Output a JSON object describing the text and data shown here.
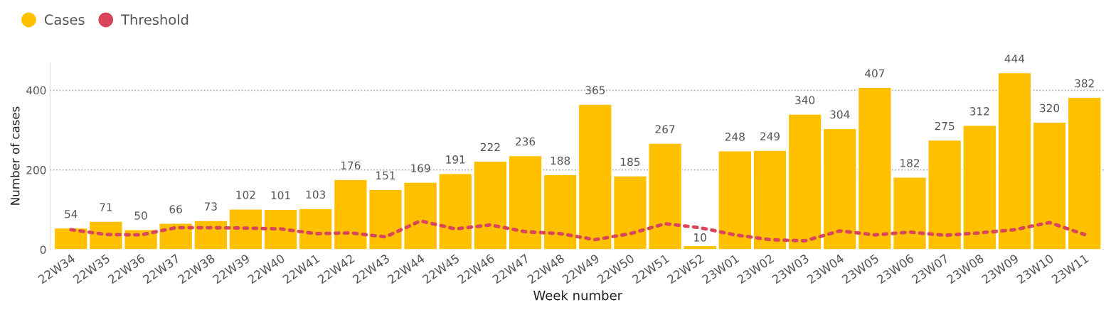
{
  "chart_data": {
    "type": "bar",
    "xlabel": "Week number",
    "ylabel": "Number of cases",
    "categories": [
      "22W34",
      "22W35",
      "22W36",
      "22W37",
      "22W38",
      "22W39",
      "22W40",
      "22W41",
      "22W42",
      "22W43",
      "22W44",
      "22W45",
      "22W46",
      "22W47",
      "22W48",
      "22W49",
      "22W50",
      "22W51",
      "22W52",
      "23W01",
      "23W02",
      "23W03",
      "23W04",
      "23W05",
      "23W06",
      "23W07",
      "23W08",
      "23W09",
      "23W10",
      "23W11"
    ],
    "series": [
      {
        "name": "Cases",
        "color": "#ffc000",
        "values": [
          54,
          71,
          50,
          66,
          73,
          102,
          101,
          103,
          176,
          151,
          169,
          191,
          222,
          236,
          188,
          365,
          185,
          267,
          10,
          248,
          249,
          340,
          304,
          407,
          182,
          275,
          312,
          444,
          320,
          382
        ],
        "value_labels": [
          "54",
          "71",
          "50",
          "66",
          "73",
          "102",
          "101",
          "103",
          "176",
          "151",
          "169",
          "191",
          "222",
          "236",
          "188",
          "365",
          "185",
          "267",
          "10",
          "248",
          "249",
          "340",
          "304",
          "407",
          "182",
          "275",
          "312",
          "444",
          "320",
          "382"
        ]
      },
      {
        "name": "Threshold",
        "type": "line",
        "color": "#d9455a",
        "line_style": "dotted",
        "values": [
          50,
          38,
          37,
          55,
          55,
          54,
          52,
          40,
          42,
          32,
          72,
          52,
          62,
          45,
          40,
          25,
          40,
          65,
          55,
          37,
          25,
          22,
          47,
          37,
          44,
          36,
          42,
          50,
          68,
          38
        ]
      }
    ],
    "ylim": [
      0,
      470
    ],
    "yticks": [
      0,
      200,
      400
    ],
    "grid": "y",
    "legend": "top left"
  }
}
